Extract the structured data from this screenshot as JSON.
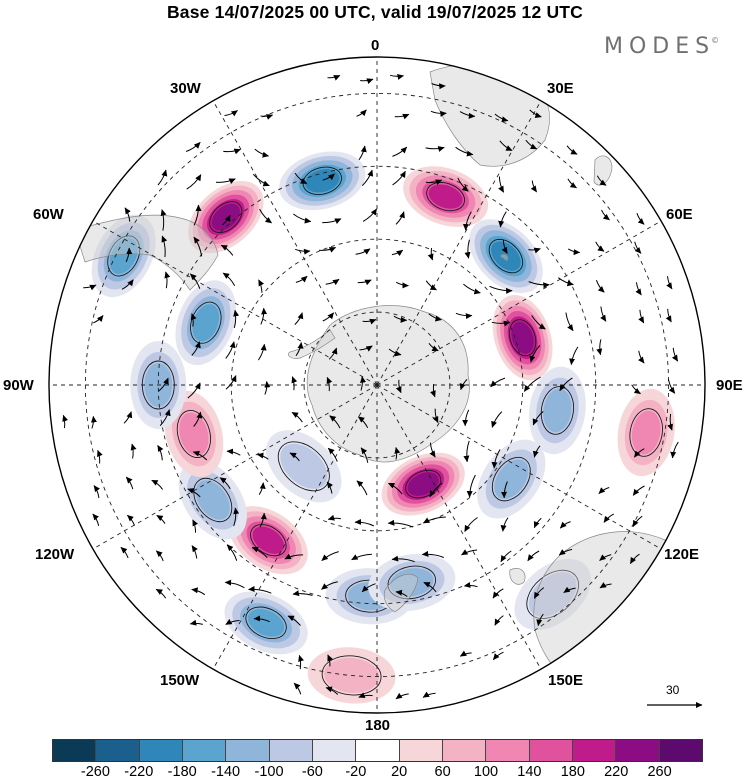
{
  "title": "Base 14/07/2025 00 UTC, valid 19/07/2025 12 UTC",
  "brand": {
    "name": "MODES",
    "mark": "©"
  },
  "longitude_labels": {
    "n": "0",
    "nne": "30E",
    "ene": "60E",
    "e": "90E",
    "ese": "120E",
    "sse": "150E",
    "s": "180",
    "ssw": "150W",
    "wsw": "120W",
    "w": "90W",
    "wnw": "60W",
    "nnw": "30W"
  },
  "reference_vector": {
    "label": "30"
  },
  "colorbar": {
    "colors": [
      "#0b3a57",
      "#1a5f8e",
      "#2f86b9",
      "#5aa4cf",
      "#8fb6da",
      "#bdc9e4",
      "#e3e5f1",
      "#ffffff",
      "#f7d6da",
      "#f4b2c5",
      "#ef87b2",
      "#e0519e",
      "#bf1b8b",
      "#8c0c83",
      "#5c0a6e"
    ],
    "ticks": [
      "-260",
      "-220",
      "-180",
      "-140",
      "-100",
      "-60",
      "-20",
      "20",
      "60",
      "100",
      "140",
      "180",
      "220",
      "260"
    ]
  },
  "anomaly_centers": [
    {
      "lon": -178,
      "colat": 58,
      "val": -140
    },
    {
      "lon": -155,
      "colat": 72,
      "val": -180
    },
    {
      "lon": -145,
      "colat": 52,
      "val": 200
    },
    {
      "lon": -138,
      "colat": 30,
      "val": -100
    },
    {
      "lon": -125,
      "colat": 55,
      "val": -120
    },
    {
      "lon": -105,
      "colat": 52,
      "val": 140
    },
    {
      "lon": -90,
      "colat": 60,
      "val": -140
    },
    {
      "lon": -70,
      "colat": 50,
      "val": -150
    },
    {
      "lon": -63,
      "colat": 78,
      "val": -170
    },
    {
      "lon": -42,
      "colat": 62,
      "val": 240
    },
    {
      "lon": -15,
      "colat": 58,
      "val": -200
    },
    {
      "lon": 20,
      "colat": 55,
      "val": 200
    },
    {
      "lon": 45,
      "colat": 50,
      "val": -200
    },
    {
      "lon": 72,
      "colat": 42,
      "val": 250
    },
    {
      "lon": 98,
      "colat": 50,
      "val": -120
    },
    {
      "lon": 100,
      "colat": 75,
      "val": 130
    },
    {
      "lon": 125,
      "colat": 45,
      "val": -120
    },
    {
      "lon": 155,
      "colat": 30,
      "val": 240
    },
    {
      "lon": 140,
      "colat": 75,
      "val": -100
    },
    {
      "lon": 170,
      "colat": 55,
      "val": -140
    },
    {
      "lon": -175,
      "colat": 80,
      "val": 70
    }
  ]
}
